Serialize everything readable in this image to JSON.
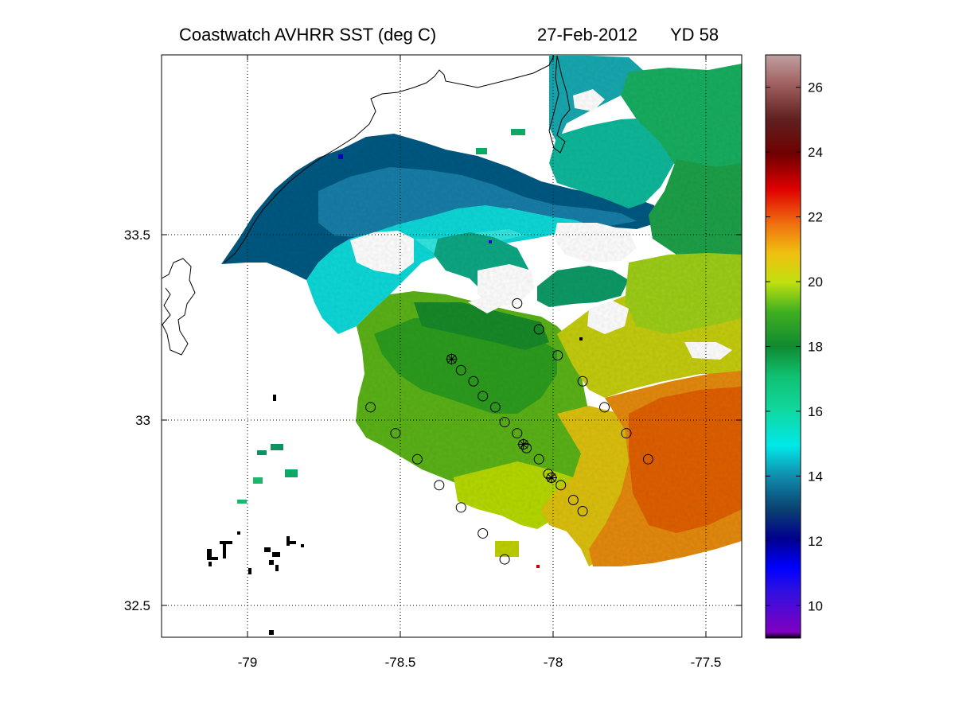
{
  "title": {
    "product": "Coastwatch   AVHRR   SST  (deg C)",
    "date": "27-Feb-2012",
    "yearday": "YD 58"
  },
  "map": {
    "lon_range": [
      -79.26,
      -77.4
    ],
    "lat_range": [
      32.42,
      33.99
    ],
    "x_ticks": [
      "-79",
      "-78.5",
      "-78",
      "-77.5"
    ],
    "x_tick_values": [
      -79,
      -78.5,
      -78,
      -77.5
    ],
    "y_ticks": [
      "33.5",
      "33",
      "32.5"
    ],
    "y_tick_values": [
      33.5,
      33,
      32.5
    ],
    "grid": "dotted"
  },
  "colorbar": {
    "range": [
      9,
      27
    ],
    "ticks": [
      "10",
      "12",
      "14",
      "16",
      "18",
      "20",
      "22",
      "24",
      "26"
    ],
    "tick_values": [
      10,
      12,
      14,
      16,
      18,
      20,
      22,
      24,
      26
    ],
    "colormap": "jet-like (purple-blue-cyan-green-yellow-orange-red-brown)"
  },
  "chart_data": {
    "type": "scatter",
    "title": "Coastwatch   AVHRR   SST  (deg C)   27-Feb-2012   YD 58",
    "xlabel": "",
    "ylabel": "",
    "xlim": [
      -79.26,
      -77.4
    ],
    "ylim": [
      32.42,
      33.99
    ],
    "field": "sea surface temperature (deg C), approx. 12-22",
    "stations": [
      {
        "lon": -78.12,
        "lat": 33.32,
        "marker": "circle"
      },
      {
        "lon": -78.05,
        "lat": 33.25,
        "marker": "circle"
      },
      {
        "lon": -77.99,
        "lat": 33.18,
        "marker": "circle"
      },
      {
        "lon": -77.91,
        "lat": 33.11,
        "marker": "circle"
      },
      {
        "lon": -77.84,
        "lat": 33.04,
        "marker": "circle"
      },
      {
        "lon": -77.77,
        "lat": 32.97,
        "marker": "circle"
      },
      {
        "lon": -77.7,
        "lat": 32.9,
        "marker": "circle"
      },
      {
        "lon": -78.33,
        "lat": 33.17,
        "marker": "circle-cross"
      },
      {
        "lon": -78.3,
        "lat": 33.14,
        "marker": "circle"
      },
      {
        "lon": -78.26,
        "lat": 33.11,
        "marker": "circle"
      },
      {
        "lon": -78.23,
        "lat": 33.07,
        "marker": "circle"
      },
      {
        "lon": -78.19,
        "lat": 33.04,
        "marker": "circle"
      },
      {
        "lon": -78.16,
        "lat": 33.0,
        "marker": "circle"
      },
      {
        "lon": -78.12,
        "lat": 32.97,
        "marker": "circle"
      },
      {
        "lon": -78.1,
        "lat": 32.94,
        "marker": "circle-cross"
      },
      {
        "lon": -78.09,
        "lat": 32.93,
        "marker": "circle"
      },
      {
        "lon": -78.05,
        "lat": 32.9,
        "marker": "circle"
      },
      {
        "lon": -78.02,
        "lat": 32.86,
        "marker": "circle"
      },
      {
        "lon": -78.01,
        "lat": 32.85,
        "marker": "circle-cross"
      },
      {
        "lon": -77.98,
        "lat": 32.83,
        "marker": "circle"
      },
      {
        "lon": -77.94,
        "lat": 32.79,
        "marker": "circle"
      },
      {
        "lon": -77.91,
        "lat": 32.76,
        "marker": "circle"
      },
      {
        "lon": -78.59,
        "lat": 33.04,
        "marker": "circle"
      },
      {
        "lon": -78.51,
        "lat": 32.97,
        "marker": "circle"
      },
      {
        "lon": -78.44,
        "lat": 32.9,
        "marker": "circle"
      },
      {
        "lon": -78.37,
        "lat": 32.83,
        "marker": "circle"
      },
      {
        "lon": -78.3,
        "lat": 32.77,
        "marker": "circle"
      },
      {
        "lon": -78.23,
        "lat": 32.7,
        "marker": "circle"
      },
      {
        "lon": -78.16,
        "lat": 32.63,
        "marker": "circle"
      }
    ]
  }
}
